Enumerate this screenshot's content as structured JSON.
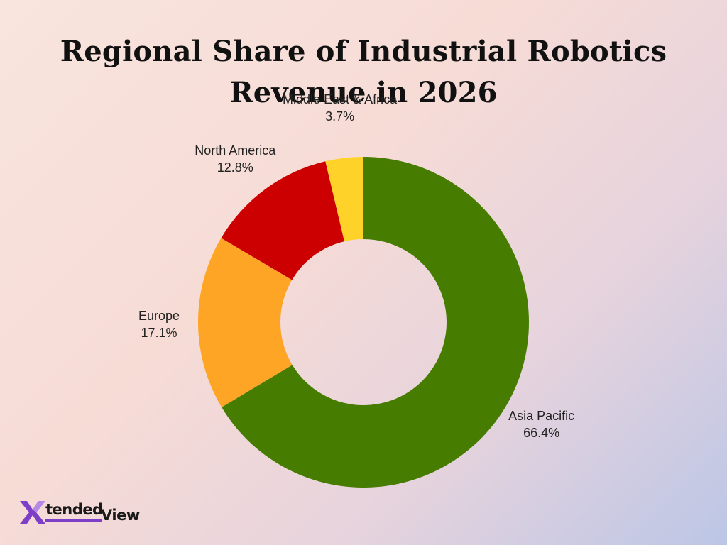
{
  "chart_data": {
    "type": "pie",
    "donut": true,
    "title_lines": [
      "Regional Share of Industrial Robotics",
      "Revenue in 2026"
    ],
    "unit": "%",
    "slices": [
      {
        "label": "Asia Pacific",
        "value": 66.4,
        "value_label": "66.4%",
        "color": "#467c00"
      },
      {
        "label": "Europe",
        "value": 17.1,
        "value_label": "17.1%",
        "color": "#ffa526"
      },
      {
        "label": "North America",
        "value": 12.8,
        "value_label": "12.8%",
        "color": "#cc0000"
      },
      {
        "label": "Middle East & Africa",
        "value": 3.7,
        "value_label": "3.7%",
        "color": "#ffd22a"
      }
    ],
    "start": "top",
    "direction": "clockwise"
  },
  "logo": {
    "text_part1": "tended",
    "text_part2": "View",
    "accent_color": "#7d3fc8"
  }
}
